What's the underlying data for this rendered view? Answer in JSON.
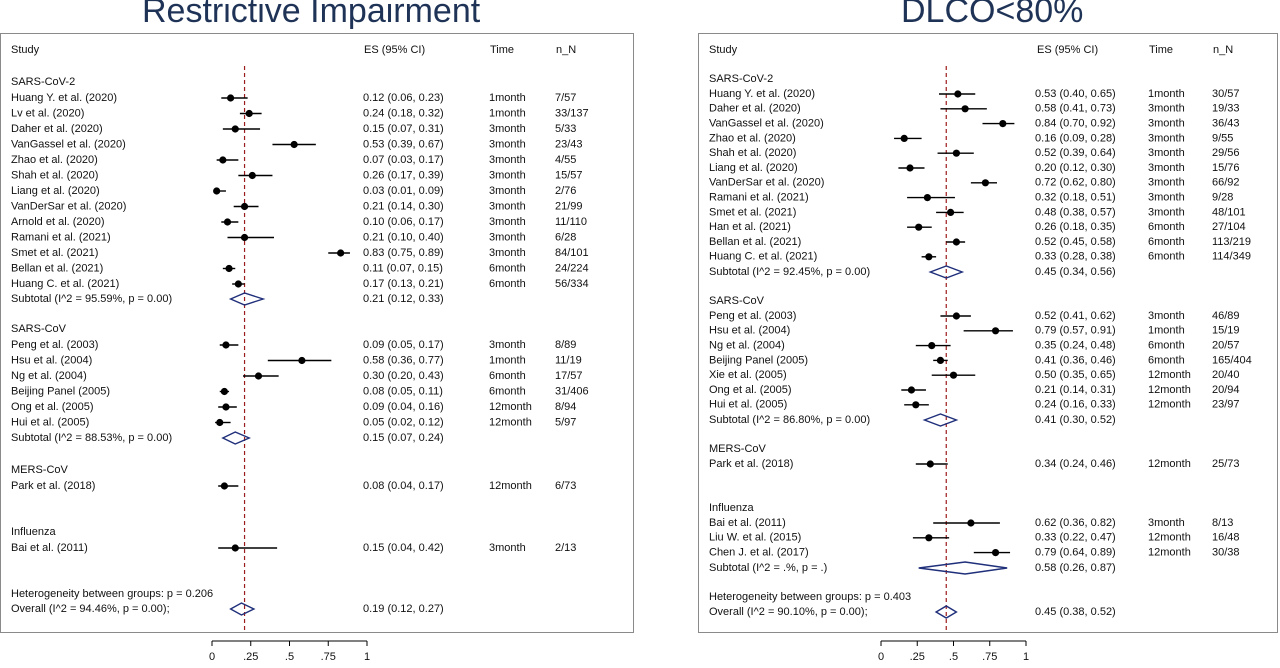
{
  "chart_data": [
    {
      "type": "forest",
      "title": "Restrictive Impairment",
      "columns": {
        "study": "Study",
        "es": "ES (95% CI)",
        "time": "Time",
        "nn": "n_N"
      },
      "x_axis": {
        "ticks": [
          0,
          0.25,
          0.5,
          0.75,
          1
        ],
        "tick_labels": [
          "0",
          ".25",
          ".5",
          ".75",
          "1"
        ]
      },
      "reference_line": 0.21,
      "groups": [
        {
          "name": "SARS-CoV-2",
          "studies": [
            {
              "label": "Huang Y. et al. (2020)",
              "es": 0.12,
              "lo": 0.06,
              "hi": 0.23,
              "ci": "0.12 (0.06, 0.23)",
              "time": "1month",
              "nn": "7/57"
            },
            {
              "label": "Lv et al. (2020)",
              "es": 0.24,
              "lo": 0.18,
              "hi": 0.32,
              "ci": "0.24 (0.18, 0.32)",
              "time": "1month",
              "nn": "33/137"
            },
            {
              "label": "Daher et al. (2020)",
              "es": 0.15,
              "lo": 0.07,
              "hi": 0.31,
              "ci": "0.15 (0.07, 0.31)",
              "time": "3month",
              "nn": "5/33"
            },
            {
              "label": "VanGassel et al. (2020)",
              "es": 0.53,
              "lo": 0.39,
              "hi": 0.67,
              "ci": "0.53 (0.39, 0.67)",
              "time": "3month",
              "nn": "23/43"
            },
            {
              "label": "Zhao et al. (2020)",
              "es": 0.07,
              "lo": 0.03,
              "hi": 0.17,
              "ci": "0.07 (0.03, 0.17)",
              "time": "3month",
              "nn": "4/55"
            },
            {
              "label": "Shah et al. (2020)",
              "es": 0.26,
              "lo": 0.17,
              "hi": 0.39,
              "ci": "0.26 (0.17, 0.39)",
              "time": "3month",
              "nn": "15/57"
            },
            {
              "label": "Liang et al. (2020)",
              "es": 0.03,
              "lo": 0.01,
              "hi": 0.09,
              "ci": "0.03 (0.01, 0.09)",
              "time": "3month",
              "nn": "2/76"
            },
            {
              "label": "VanDerSar et al. (2020)",
              "es": 0.21,
              "lo": 0.14,
              "hi": 0.3,
              "ci": "0.21 (0.14, 0.30)",
              "time": "3month",
              "nn": "21/99"
            },
            {
              "label": "Arnold et al. (2020)",
              "es": 0.1,
              "lo": 0.06,
              "hi": 0.17,
              "ci": "0.10 (0.06, 0.17)",
              "time": "3month",
              "nn": "11/110"
            },
            {
              "label": "Ramani et al. (2021)",
              "es": 0.21,
              "lo": 0.1,
              "hi": 0.4,
              "ci": "0.21 (0.10, 0.40)",
              "time": "3month",
              "nn": "6/28"
            },
            {
              "label": "Smet et al. (2021)",
              "es": 0.83,
              "lo": 0.75,
              "hi": 0.89,
              "ci": "0.83 (0.75, 0.89)",
              "time": "3month",
              "nn": "84/101"
            },
            {
              "label": "Bellan et al. (2021)",
              "es": 0.11,
              "lo": 0.07,
              "hi": 0.15,
              "ci": "0.11 (0.07, 0.15)",
              "time": "6month",
              "nn": "24/224"
            },
            {
              "label": "Huang C. et al. (2021)",
              "es": 0.17,
              "lo": 0.13,
              "hi": 0.21,
              "ci": "0.17 (0.13, 0.21)",
              "time": "6month",
              "nn": "56/334"
            }
          ],
          "subtotal": {
            "label": "Subtotal  (I^2 = 95.59%, p = 0.00)",
            "es": 0.21,
            "lo": 0.12,
            "hi": 0.33,
            "ci": "0.21 (0.12, 0.33)"
          }
        },
        {
          "name": "SARS-CoV",
          "studies": [
            {
              "label": "Peng et al. (2003)",
              "es": 0.09,
              "lo": 0.05,
              "hi": 0.17,
              "ci": "0.09 (0.05, 0.17)",
              "time": "3month",
              "nn": "8/89"
            },
            {
              "label": "Hsu et al. (2004)",
              "es": 0.58,
              "lo": 0.36,
              "hi": 0.77,
              "ci": "0.58 (0.36, 0.77)",
              "time": "1month",
              "nn": "11/19"
            },
            {
              "label": "Ng et al. (2004)",
              "es": 0.3,
              "lo": 0.2,
              "hi": 0.43,
              "ci": "0.30 (0.20, 0.43)",
              "time": "6month",
              "nn": "17/57"
            },
            {
              "label": "Beijing Panel (2005)",
              "es": 0.08,
              "lo": 0.05,
              "hi": 0.11,
              "ci": "0.08 (0.05, 0.11)",
              "time": "6month",
              "nn": "31/406"
            },
            {
              "label": "Ong et al. (2005)",
              "es": 0.09,
              "lo": 0.04,
              "hi": 0.16,
              "ci": "0.09 (0.04, 0.16)",
              "time": "12month",
              "nn": "8/94"
            },
            {
              "label": "Hui et al. (2005)",
              "es": 0.05,
              "lo": 0.02,
              "hi": 0.12,
              "ci": "0.05 (0.02, 0.12)",
              "time": "12month",
              "nn": "5/97"
            }
          ],
          "subtotal": {
            "label": "Subtotal  (I^2 = 88.53%, p = 0.00)",
            "es": 0.15,
            "lo": 0.07,
            "hi": 0.24,
            "ci": "0.15 (0.07, 0.24)"
          }
        },
        {
          "name": "MERS-CoV",
          "studies": [
            {
              "label": "Park et al. (2018)",
              "es": 0.08,
              "lo": 0.04,
              "hi": 0.17,
              "ci": "0.08 (0.04, 0.17)",
              "time": "12month",
              "nn": "6/73"
            }
          ]
        },
        {
          "name": "Influenza",
          "studies": [
            {
              "label": "Bai et al.  (2011)",
              "es": 0.15,
              "lo": 0.04,
              "hi": 0.42,
              "ci": "0.15 (0.04, 0.42)",
              "time": "3month",
              "nn": "2/13"
            }
          ]
        }
      ],
      "heterogeneity": "Heterogeneity between groups: p = 0.206",
      "overall": {
        "label": "Overall  (I^2 = 94.46%, p = 0.00);",
        "es": 0.19,
        "lo": 0.12,
        "hi": 0.27,
        "ci": "0.19 (0.12, 0.27)"
      }
    },
    {
      "type": "forest",
      "title": "DLCO<80%",
      "columns": {
        "study": "Study",
        "es": "ES (95% CI)",
        "time": "Time",
        "nn": "n_N"
      },
      "x_axis": {
        "ticks": [
          0,
          0.25,
          0.5,
          0.75,
          1
        ],
        "tick_labels": [
          "0",
          ".25",
          ".5",
          ".75",
          "1"
        ]
      },
      "reference_line": 0.45,
      "groups": [
        {
          "name": "SARS-CoV-2",
          "studies": [
            {
              "label": "Huang Y. et al. (2020)",
              "es": 0.53,
              "lo": 0.4,
              "hi": 0.65,
              "ci": "0.53 (0.40, 0.65)",
              "time": "1month",
              "nn": "30/57"
            },
            {
              "label": "Daher et al. (2020)",
              "es": 0.58,
              "lo": 0.41,
              "hi": 0.73,
              "ci": "0.58 (0.41, 0.73)",
              "time": "3month",
              "nn": "19/33"
            },
            {
              "label": "VanGassel et al. (2020)",
              "es": 0.84,
              "lo": 0.7,
              "hi": 0.92,
              "ci": "0.84 (0.70, 0.92)",
              "time": "3month",
              "nn": "36/43"
            },
            {
              "label": "Zhao et al. (2020)",
              "es": 0.16,
              "lo": 0.09,
              "hi": 0.28,
              "ci": "0.16 (0.09, 0.28)",
              "time": "3month",
              "nn": "9/55"
            },
            {
              "label": "Shah et al. (2020)",
              "es": 0.52,
              "lo": 0.39,
              "hi": 0.64,
              "ci": "0.52 (0.39, 0.64)",
              "time": "3month",
              "nn": "29/56"
            },
            {
              "label": "Liang et al. (2020)",
              "es": 0.2,
              "lo": 0.12,
              "hi": 0.3,
              "ci": "0.20 (0.12, 0.30)",
              "time": "3month",
              "nn": "15/76"
            },
            {
              "label": "VanDerSar et al. (2020)",
              "es": 0.72,
              "lo": 0.62,
              "hi": 0.8,
              "ci": "0.72 (0.62, 0.80)",
              "time": "3month",
              "nn": "66/92"
            },
            {
              "label": "Ramani et al. (2021)",
              "es": 0.32,
              "lo": 0.18,
              "hi": 0.51,
              "ci": "0.32 (0.18, 0.51)",
              "time": "3month",
              "nn": "9/28"
            },
            {
              "label": "Smet et al. (2021)",
              "es": 0.48,
              "lo": 0.38,
              "hi": 0.57,
              "ci": "0.48 (0.38, 0.57)",
              "time": "3month",
              "nn": "48/101"
            },
            {
              "label": "Han et al. (2021)",
              "es": 0.26,
              "lo": 0.18,
              "hi": 0.35,
              "ci": "0.26 (0.18, 0.35)",
              "time": "6month",
              "nn": "27/104"
            },
            {
              "label": "Bellan et al. (2021)",
              "es": 0.52,
              "lo": 0.45,
              "hi": 0.58,
              "ci": "0.52 (0.45, 0.58)",
              "time": "6month",
              "nn": "113/219"
            },
            {
              "label": "Huang C. et al. (2021)",
              "es": 0.33,
              "lo": 0.28,
              "hi": 0.38,
              "ci": "0.33 (0.28, 0.38)",
              "time": "6month",
              "nn": "114/349"
            }
          ],
          "subtotal": {
            "label": "Subtotal  (I^2 = 92.45%, p = 0.00)",
            "es": 0.45,
            "lo": 0.34,
            "hi": 0.56,
            "ci": "0.45 (0.34, 0.56)"
          }
        },
        {
          "name": "SARS-CoV",
          "studies": [
            {
              "label": "Peng et al. (2003)",
              "es": 0.52,
              "lo": 0.41,
              "hi": 0.62,
              "ci": "0.52 (0.41, 0.62)",
              "time": "3month",
              "nn": "46/89"
            },
            {
              "label": "Hsu et al. (2004)",
              "es": 0.79,
              "lo": 0.57,
              "hi": 0.91,
              "ci": "0.79 (0.57, 0.91)",
              "time": "1month",
              "nn": "15/19"
            },
            {
              "label": "Ng et al. (2004)",
              "es": 0.35,
              "lo": 0.24,
              "hi": 0.48,
              "ci": "0.35 (0.24, 0.48)",
              "time": "6month",
              "nn": "20/57"
            },
            {
              "label": "Beijing Panel (2005)",
              "es": 0.41,
              "lo": 0.36,
              "hi": 0.46,
              "ci": "0.41 (0.36, 0.46)",
              "time": "6month",
              "nn": "165/404"
            },
            {
              "label": "Xie et al. (2005)",
              "es": 0.5,
              "lo": 0.35,
              "hi": 0.65,
              "ci": "0.50 (0.35, 0.65)",
              "time": "12month",
              "nn": "20/40"
            },
            {
              "label": "Ong et al. (2005)",
              "es": 0.21,
              "lo": 0.14,
              "hi": 0.31,
              "ci": "0.21 (0.14, 0.31)",
              "time": "12month",
              "nn": "20/94"
            },
            {
              "label": "Hui et al. (2005)",
              "es": 0.24,
              "lo": 0.16,
              "hi": 0.33,
              "ci": "0.24 (0.16, 0.33)",
              "time": "12month",
              "nn": "23/97"
            }
          ],
          "subtotal": {
            "label": "Subtotal  (I^2 = 86.80%, p = 0.00)",
            "es": 0.41,
            "lo": 0.3,
            "hi": 0.52,
            "ci": "0.41 (0.30, 0.52)"
          }
        },
        {
          "name": "MERS-CoV",
          "studies": [
            {
              "label": "Park et al. (2018)",
              "es": 0.34,
              "lo": 0.24,
              "hi": 0.46,
              "ci": "0.34 (0.24, 0.46)",
              "time": "12month",
              "nn": "25/73"
            }
          ]
        },
        {
          "name": "Influenza",
          "studies": [
            {
              "label": "Bai et al.  (2011)",
              "es": 0.62,
              "lo": 0.36,
              "hi": 0.82,
              "ci": "0.62 (0.36, 0.82)",
              "time": "3month",
              "nn": "8/13"
            },
            {
              "label": "Liu W. et al.  (2015)",
              "es": 0.33,
              "lo": 0.22,
              "hi": 0.47,
              "ci": "0.33 (0.22, 0.47)",
              "time": "12month",
              "nn": "16/48"
            },
            {
              "label": "Chen J. et al. (2017)",
              "es": 0.79,
              "lo": 0.64,
              "hi": 0.89,
              "ci": "0.79 (0.64, 0.89)",
              "time": "12month",
              "nn": "30/38"
            }
          ],
          "subtotal": {
            "label": "Subtotal  (I^2 = .%, p = .)",
            "es": 0.58,
            "lo": 0.26,
            "hi": 0.87,
            "ci": "0.58 (0.26, 0.87)"
          }
        }
      ],
      "heterogeneity": "Heterogeneity between groups: p = 0.403",
      "overall": {
        "label": "Overall  (I^2 = 90.10%, p = 0.00);",
        "es": 0.45,
        "lo": 0.38,
        "hi": 0.52,
        "ci": "0.45 (0.38, 0.52)"
      }
    }
  ]
}
